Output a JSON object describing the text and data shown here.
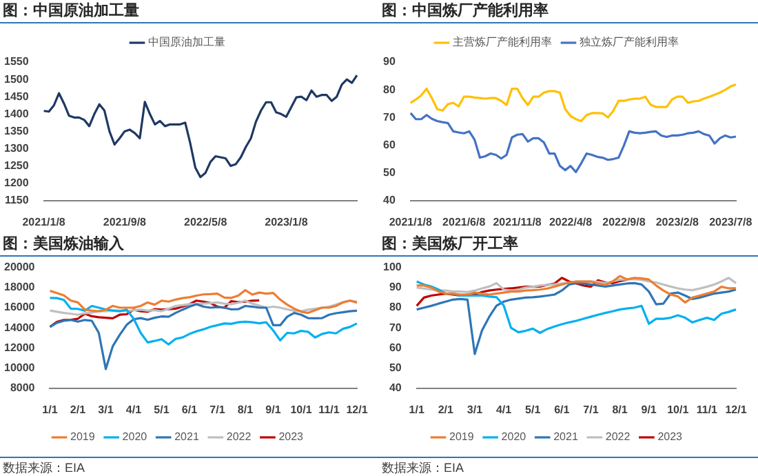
{
  "chart_data": [
    {
      "type": "line",
      "title": "图：中国原油加工量",
      "legend": "top",
      "marker": "none",
      "categories": [
        "2021/1/8",
        null,
        null,
        null,
        null,
        null,
        null,
        null,
        null,
        null,
        null,
        null,
        null,
        null,
        null,
        null,
        "2021/9/8",
        null,
        null,
        null,
        null,
        null,
        null,
        null,
        null,
        null,
        null,
        null,
        null,
        null,
        null,
        null,
        "2022/5/8",
        null,
        null,
        null,
        null,
        null,
        null,
        null,
        null,
        null,
        null,
        null,
        null,
        null,
        null,
        null,
        "2023/1/8",
        null,
        null,
        null,
        null,
        null,
        null,
        null,
        null,
        null,
        null,
        null,
        null,
        null,
        null
      ],
      "ylim": [
        1150,
        1550
      ],
      "yticks": [
        1150,
        1200,
        1250,
        1300,
        1350,
        1400,
        1450,
        1500,
        1550
      ],
      "series": [
        {
          "name": "中国原油加工量",
          "color": "#1f3864",
          "values": [
            1409,
            1407,
            1425,
            1460,
            1430,
            1395,
            1390,
            1390,
            1383,
            1365,
            1400,
            1428,
            1410,
            1350,
            1312,
            1330,
            1350,
            1355,
            1345,
            1330,
            1435,
            1400,
            1370,
            1380,
            1365,
            1370,
            1370,
            1370,
            1375,
            1315,
            1245,
            1218,
            1230,
            1262,
            1278,
            1275,
            1272,
            1250,
            1255,
            1275,
            1305,
            1330,
            1378,
            1410,
            1434,
            1434,
            1405,
            1400,
            1392,
            1420,
            1448,
            1450,
            1440,
            1468,
            1450,
            1455,
            1455,
            1438,
            1450,
            1485,
            1500,
            1490,
            1512
          ]
        }
      ]
    },
    {
      "type": "line",
      "title": "图：中国炼厂产能利用率",
      "legend": "top",
      "marker": "none",
      "categories": [
        "2021/1/8",
        null,
        null,
        null,
        null,
        null,
        null,
        null,
        null,
        null,
        "2021/6/8",
        null,
        null,
        null,
        null,
        null,
        null,
        null,
        null,
        null,
        "2021/11/8",
        null,
        null,
        null,
        null,
        null,
        null,
        null,
        null,
        null,
        "2022/4/8",
        null,
        null,
        null,
        null,
        null,
        null,
        null,
        null,
        null,
        "2022/9/8",
        null,
        null,
        null,
        null,
        null,
        null,
        null,
        null,
        null,
        "2023/2/8",
        null,
        null,
        null,
        null,
        null,
        null,
        null,
        null,
        null,
        "2023/7/8",
        null
      ],
      "ylim": [
        40,
        90
      ],
      "yticks": [
        40,
        50,
        60,
        70,
        80,
        90
      ],
      "series": [
        {
          "name": "主营炼厂产能利用率",
          "color": "#ffc000",
          "values": [
            75.3,
            76.5,
            78,
            80.4,
            77,
            73,
            72.5,
            74.8,
            75.3,
            74,
            77.5,
            77.5,
            77.2,
            77,
            76.8,
            77,
            77,
            76,
            74.5,
            80.4,
            80.4,
            77,
            74.5,
            77.5,
            77.5,
            79,
            79.5,
            79.5,
            79,
            73,
            70.5,
            69.4,
            68.7,
            70.9,
            71.6,
            71.6,
            71.5,
            70,
            72.4,
            76,
            76,
            76.5,
            76.8,
            76.8,
            77.5,
            74.6,
            73.8,
            73.8,
            73.8,
            76.5,
            77.5,
            77.5,
            75.3,
            75.8,
            76,
            76.8,
            77.5,
            78.2,
            79,
            80,
            81.2,
            81.9
          ]
        },
        {
          "name": "独立炼厂产能利用率",
          "color": "#4472c4",
          "values": [
            71.6,
            69.4,
            69.4,
            70.9,
            69.5,
            68.7,
            68.3,
            68,
            65,
            64.6,
            64.3,
            65,
            62,
            55.5,
            56,
            57,
            56.5,
            55.2,
            56.5,
            62.8,
            63.8,
            64,
            61.3,
            62.5,
            62.5,
            61,
            57,
            57,
            52.5,
            51,
            52.5,
            50.3,
            53.5,
            57,
            56.5,
            55.8,
            55.5,
            54.7,
            55,
            55.5,
            59.9,
            65,
            64.5,
            64.3,
            64.5,
            64.8,
            65,
            63.5,
            63,
            63.5,
            63.5,
            63.8,
            64.3,
            64.5,
            65,
            64,
            63.5,
            60.6,
            62.5,
            63.5,
            62.8,
            63.1
          ]
        }
      ]
    },
    {
      "type": "line",
      "title": "图：美国炼油输入",
      "legend": "bottom",
      "marker": "none",
      "annotations": [
        "数据来源：EIA"
      ],
      "categories": [
        "1/1",
        null,
        null,
        null,
        "2/1",
        null,
        null,
        null,
        "3/1",
        null,
        null,
        null,
        "4/1",
        null,
        null,
        null,
        "5/1",
        null,
        null,
        null,
        "6/1",
        null,
        null,
        null,
        "7/1",
        null,
        null,
        null,
        "8/1",
        null,
        null,
        null,
        "9/1",
        null,
        null,
        null,
        "10/1",
        null,
        null,
        null,
        "11/1",
        null,
        null,
        null,
        "12/1"
      ],
      "ylim": [
        8000,
        20000
      ],
      "yticks": [
        8000,
        10000,
        12000,
        14000,
        16000,
        18000,
        20000
      ],
      "series": [
        {
          "name": "2019",
          "color": "#ed7d31",
          "values": [
            17670,
            17450,
            17220,
            16700,
            16520,
            15800,
            15700,
            15650,
            15800,
            16170,
            16000,
            16000,
            16000,
            16170,
            16520,
            16300,
            16700,
            16600,
            16800,
            16950,
            17040,
            17200,
            17320,
            17350,
            17390,
            17000,
            16970,
            17200,
            17740,
            17300,
            17500,
            17400,
            17460,
            16800,
            16300,
            15900,
            15600,
            15480,
            15750,
            16000,
            16000,
            16170,
            16520,
            16700,
            16500
          ]
        },
        {
          "name": "2020",
          "color": "#00b0f0",
          "values": [
            16970,
            16950,
            16770,
            15900,
            15880,
            15700,
            16170,
            16000,
            15830,
            15700,
            15650,
            15800,
            14900,
            13500,
            12550,
            12700,
            12870,
            12350,
            12900,
            13050,
            13390,
            13650,
            13850,
            14100,
            14260,
            14430,
            14400,
            14550,
            14610,
            14550,
            14450,
            14550,
            13740,
            12750,
            13500,
            13450,
            13700,
            13600,
            13040,
            13390,
            13550,
            13450,
            13900,
            14090,
            14430
          ]
        },
        {
          "name": "2021",
          "color": "#2e75b6",
          "values": [
            14090,
            14500,
            14700,
            14780,
            14610,
            14780,
            14700,
            13500,
            9910,
            12170,
            13300,
            14300,
            14850,
            14960,
            14800,
            15000,
            15130,
            15100,
            15480,
            15800,
            16100,
            16350,
            16100,
            16000,
            16050,
            16000,
            15830,
            15850,
            16170,
            16100,
            16000,
            16000,
            14260,
            14260,
            15100,
            15480,
            15300,
            14960,
            14950,
            14960,
            15300,
            15450,
            15550,
            15650,
            15700
          ]
        },
        {
          "name": "2022",
          "color": "#bfbfbf",
          "values": [
            15720,
            15600,
            15480,
            15400,
            15300,
            15450,
            15500,
            15650,
            15650,
            15750,
            15700,
            15650,
            15750,
            15800,
            15700,
            15750,
            15650,
            15900,
            16170,
            16250,
            16350,
            16350,
            16400,
            16450,
            16520,
            16400,
            16350,
            16500,
            16700,
            16400,
            16200,
            16000,
            16100,
            16000,
            15830,
            15700,
            15650,
            15800,
            15900,
            16000,
            16100,
            16300,
            16550,
            16700,
            16600
          ]
        },
        {
          "name": "2023",
          "color": "#c00000",
          "values": [
            14090,
            14600,
            14780,
            14800,
            14900,
            15400,
            15150,
            15050,
            15000,
            14950,
            15300,
            15350,
            15800,
            15650,
            15600,
            15850,
            15800,
            15850,
            15900,
            16100,
            16350,
            16700,
            16600,
            16450,
            16100,
            16000,
            16650,
            16550,
            16600,
            16700,
            16720,
            null,
            null,
            null,
            null,
            null,
            null,
            null,
            null,
            null,
            null,
            null,
            null,
            null,
            null
          ]
        }
      ]
    },
    {
      "type": "line",
      "title": "图：美国炼厂开工率",
      "legend": "bottom",
      "marker": "none",
      "annotations": [
        "数据来源：EIA"
      ],
      "categories": [
        "1/1",
        null,
        null,
        null,
        "2/1",
        null,
        null,
        null,
        "3/1",
        null,
        null,
        null,
        "4/1",
        null,
        null,
        null,
        "5/1",
        null,
        null,
        null,
        "6/1",
        null,
        null,
        null,
        "7/1",
        null,
        null,
        null,
        "8/1",
        null,
        null,
        null,
        "9/1",
        null,
        null,
        null,
        "10/1",
        null,
        null,
        null,
        "11/1",
        null,
        null,
        null,
        "12/1"
      ],
      "ylim": [
        40,
        100
      ],
      "yticks": [
        40,
        50,
        60,
        70,
        80,
        90,
        100
      ],
      "series": [
        {
          "name": "2019",
          "color": "#ed7d31",
          "values": [
            91,
            91,
            90,
            88,
            87,
            87,
            86.5,
            86.5,
            87.5,
            87,
            86.5,
            87,
            87.5,
            88,
            88,
            88.5,
            88.7,
            89,
            89.5,
            90.5,
            91.5,
            92.5,
            93,
            93,
            93,
            92,
            91.3,
            93,
            95.7,
            94,
            94.8,
            94.5,
            94,
            91,
            88.5,
            86.5,
            85.6,
            82.6,
            85,
            86,
            87,
            88,
            90.4,
            89.6,
            89.6
          ]
        },
        {
          "name": "2020",
          "color": "#00b0f0",
          "values": [
            93,
            91.5,
            90.5,
            89,
            87,
            87,
            86,
            86,
            86,
            86,
            85.5,
            85.2,
            81,
            70,
            67.8,
            68.5,
            69.6,
            67.5,
            69.4,
            70.7,
            71.8,
            72.7,
            73.5,
            74.5,
            75.5,
            76.5,
            77.4,
            78.2,
            79.1,
            79.6,
            80,
            80.9,
            72,
            74.5,
            74.5,
            75,
            76.2,
            75,
            72.7,
            73.9,
            75,
            73.9,
            77,
            77.9,
            79.1
          ]
        },
        {
          "name": "2021",
          "color": "#2e75b6",
          "values": [
            79.1,
            80,
            80.9,
            82,
            83,
            84,
            84.3,
            84,
            57,
            68.7,
            75.5,
            81,
            83,
            84,
            84.5,
            85,
            85.2,
            85.5,
            86,
            86.5,
            88.5,
            91.5,
            92.2,
            92,
            91.5,
            91,
            90.5,
            91,
            91.5,
            92,
            92.2,
            91.5,
            88,
            81.7,
            82,
            87,
            87.5,
            86,
            84.3,
            85,
            86,
            87,
            87.5,
            88,
            89
          ]
        },
        {
          "name": "2022",
          "color": "#bfbfbf",
          "values": [
            90,
            89.5,
            89,
            88.5,
            88.5,
            88,
            88,
            87.8,
            88.5,
            89.6,
            90.5,
            92.2,
            89,
            88.5,
            89,
            90,
            90.4,
            91,
            91.3,
            91.6,
            92,
            92.5,
            93,
            93,
            93,
            92.8,
            92.2,
            93,
            93.9,
            94,
            94.2,
            93.8,
            93,
            92.5,
            91.5,
            90.5,
            89.6,
            89,
            88.7,
            89.5,
            90.4,
            91.5,
            93,
            94.8,
            92.2
          ]
        },
        {
          "name": "2023",
          "color": "#c00000",
          "values": [
            80.9,
            85,
            86,
            86.5,
            87,
            86.5,
            86,
            86.5,
            86.5,
            87.8,
            88.5,
            89,
            89.3,
            89.6,
            90,
            90.4,
            90.4,
            90.5,
            91.3,
            92,
            94.8,
            93,
            92,
            91,
            90.4,
            93.6,
            92.5,
            92.2,
            93.2,
            93.9,
            null,
            null,
            null,
            null,
            null,
            null,
            null,
            null,
            null,
            null,
            null,
            null,
            null,
            null,
            null
          ]
        }
      ]
    }
  ]
}
